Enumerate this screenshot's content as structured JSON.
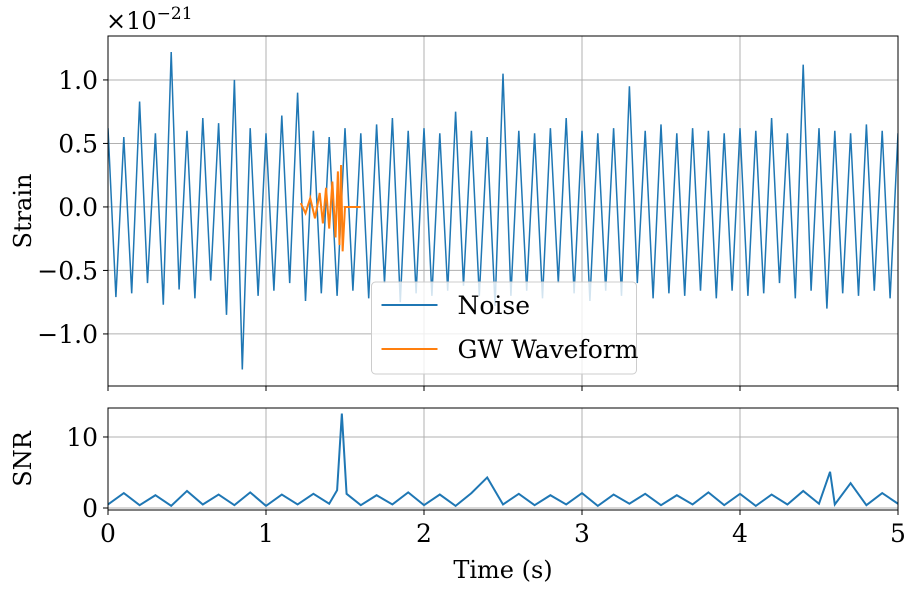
{
  "chart_data": [
    {
      "type": "line",
      "ylabel": "Strain",
      "y_offset": {
        "base": "×10",
        "exponent": "−21"
      },
      "xlim": [
        0,
        5
      ],
      "xticks": [
        0,
        1,
        2,
        3,
        4,
        5
      ],
      "ylim": [
        -1.41,
        1.346
      ],
      "yticks": [
        {
          "value": -1.0,
          "label": "−1.0"
        },
        {
          "value": -0.5,
          "label": "−0.5"
        },
        {
          "value": 0.0,
          "label": "0.0"
        },
        0.5,
        {
          "value": 1.0,
          "label": "1.0"
        }
      ],
      "grid": true,
      "legend": "lower center",
      "series": [
        {
          "name": "Noise",
          "color": "#1f77b4",
          "x": [
            0,
            0.05,
            0.1,
            0.15,
            0.2,
            0.25,
            0.3,
            0.35,
            0.4,
            0.45,
            0.5,
            0.55,
            0.6,
            0.65,
            0.7,
            0.75,
            0.8,
            0.85,
            0.9,
            0.95,
            1.0,
            1.05,
            1.1,
            1.15,
            1.2,
            1.25,
            1.3,
            1.35,
            1.4,
            1.45,
            1.5,
            1.55,
            1.6,
            1.65,
            1.7,
            1.75,
            1.8,
            1.85,
            1.9,
            1.95,
            2.0,
            2.05,
            2.1,
            2.15,
            2.2,
            2.25,
            2.3,
            2.35,
            2.4,
            2.45,
            2.5,
            2.55,
            2.6,
            2.65,
            2.7,
            2.75,
            2.8,
            2.85,
            2.9,
            2.95,
            3.0,
            3.05,
            3.1,
            3.15,
            3.2,
            3.25,
            3.3,
            3.35,
            3.4,
            3.45,
            3.5,
            3.55,
            3.6,
            3.65,
            3.7,
            3.75,
            3.8,
            3.85,
            3.9,
            3.95,
            4.0,
            4.05,
            4.1,
            4.15,
            4.2,
            4.25,
            4.3,
            4.35,
            4.4,
            4.45,
            4.5,
            4.55,
            4.6,
            4.65,
            4.7,
            4.75,
            4.8,
            4.85,
            4.9,
            4.95,
            5.0
          ],
          "values": [
            0.62,
            -0.71,
            0.55,
            -0.68,
            0.83,
            -0.6,
            0.58,
            -0.77,
            1.22,
            -0.65,
            0.6,
            -0.72,
            0.7,
            -0.58,
            0.66,
            -0.85,
            1.0,
            -1.28,
            0.62,
            -0.7,
            0.58,
            -0.66,
            0.72,
            -0.6,
            0.9,
            -0.74,
            0.6,
            -0.68,
            0.55,
            -0.7,
            0.62,
            -0.66,
            0.58,
            -0.72,
            0.65,
            -0.6,
            0.7,
            -0.75,
            0.6,
            -0.68,
            0.62,
            -0.7,
            0.58,
            -0.66,
            0.75,
            -0.62,
            0.6,
            -0.7,
            0.55,
            -0.78,
            1.05,
            -0.7,
            0.6,
            -0.66,
            0.58,
            -0.72,
            0.62,
            -0.6,
            0.7,
            -0.68,
            0.6,
            -0.74,
            0.58,
            -0.66,
            0.62,
            -0.7,
            0.95,
            -0.6,
            0.6,
            -0.72,
            0.65,
            -0.68,
            0.58,
            -0.7,
            0.62,
            -0.66,
            0.6,
            -0.72,
            0.58,
            -0.66,
            0.62,
            -0.7,
            0.6,
            -0.68,
            0.7,
            -0.6,
            0.58,
            -0.72,
            1.12,
            -0.66,
            0.62,
            -0.8,
            0.6,
            -0.68,
            0.58,
            -0.7,
            0.65,
            -0.66,
            0.6,
            -0.72,
            0.58
          ]
        },
        {
          "name": "GW Waveform",
          "color": "#ff7f0e",
          "x": [
            1.22,
            1.25,
            1.28,
            1.31,
            1.34,
            1.36,
            1.38,
            1.4,
            1.42,
            1.44,
            1.455,
            1.465,
            1.475,
            1.485,
            1.5,
            1.6
          ],
          "values": [
            0.03,
            -0.05,
            0.07,
            -0.09,
            0.11,
            -0.13,
            0.15,
            -0.17,
            0.2,
            -0.24,
            0.28,
            -0.3,
            0.33,
            -0.35,
            0.0,
            0.0
          ]
        }
      ]
    },
    {
      "type": "line",
      "ylabel": "SNR",
      "xlabel": "Time (s)",
      "xlim": [
        0,
        5
      ],
      "xticks": [
        0,
        1,
        2,
        3,
        4,
        5
      ],
      "ylim": [
        -0.28,
        14.08
      ],
      "yticks": [
        0,
        10
      ],
      "grid": true,
      "series": [
        {
          "name": "SNR",
          "color": "#1f77b4",
          "x": [
            0,
            0.1,
            0.2,
            0.3,
            0.4,
            0.5,
            0.6,
            0.7,
            0.8,
            0.9,
            1.0,
            1.1,
            1.2,
            1.3,
            1.4,
            1.45,
            1.48,
            1.51,
            1.6,
            1.7,
            1.8,
            1.9,
            2.0,
            2.1,
            2.2,
            2.3,
            2.4,
            2.5,
            2.6,
            2.7,
            2.8,
            2.9,
            3.0,
            3.1,
            3.2,
            3.3,
            3.4,
            3.5,
            3.6,
            3.7,
            3.8,
            3.9,
            4.0,
            4.1,
            4.2,
            4.3,
            4.4,
            4.5,
            4.57,
            4.6,
            4.7,
            4.8,
            4.9,
            5.0
          ],
          "values": [
            0.5,
            2.1,
            0.4,
            1.8,
            0.3,
            2.4,
            0.5,
            1.9,
            0.4,
            2.2,
            0.3,
            1.9,
            0.5,
            2.0,
            0.6,
            2.5,
            13.3,
            2.0,
            0.4,
            1.8,
            0.5,
            2.2,
            0.4,
            1.9,
            0.3,
            2.1,
            4.3,
            0.5,
            2.0,
            0.4,
            1.8,
            0.5,
            2.1,
            0.3,
            1.9,
            0.6,
            2.0,
            0.4,
            1.8,
            0.5,
            2.2,
            0.4,
            2.0,
            0.3,
            1.9,
            0.5,
            2.4,
            0.6,
            5.1,
            0.5,
            3.5,
            0.4,
            2.1,
            0.6
          ]
        }
      ]
    }
  ]
}
